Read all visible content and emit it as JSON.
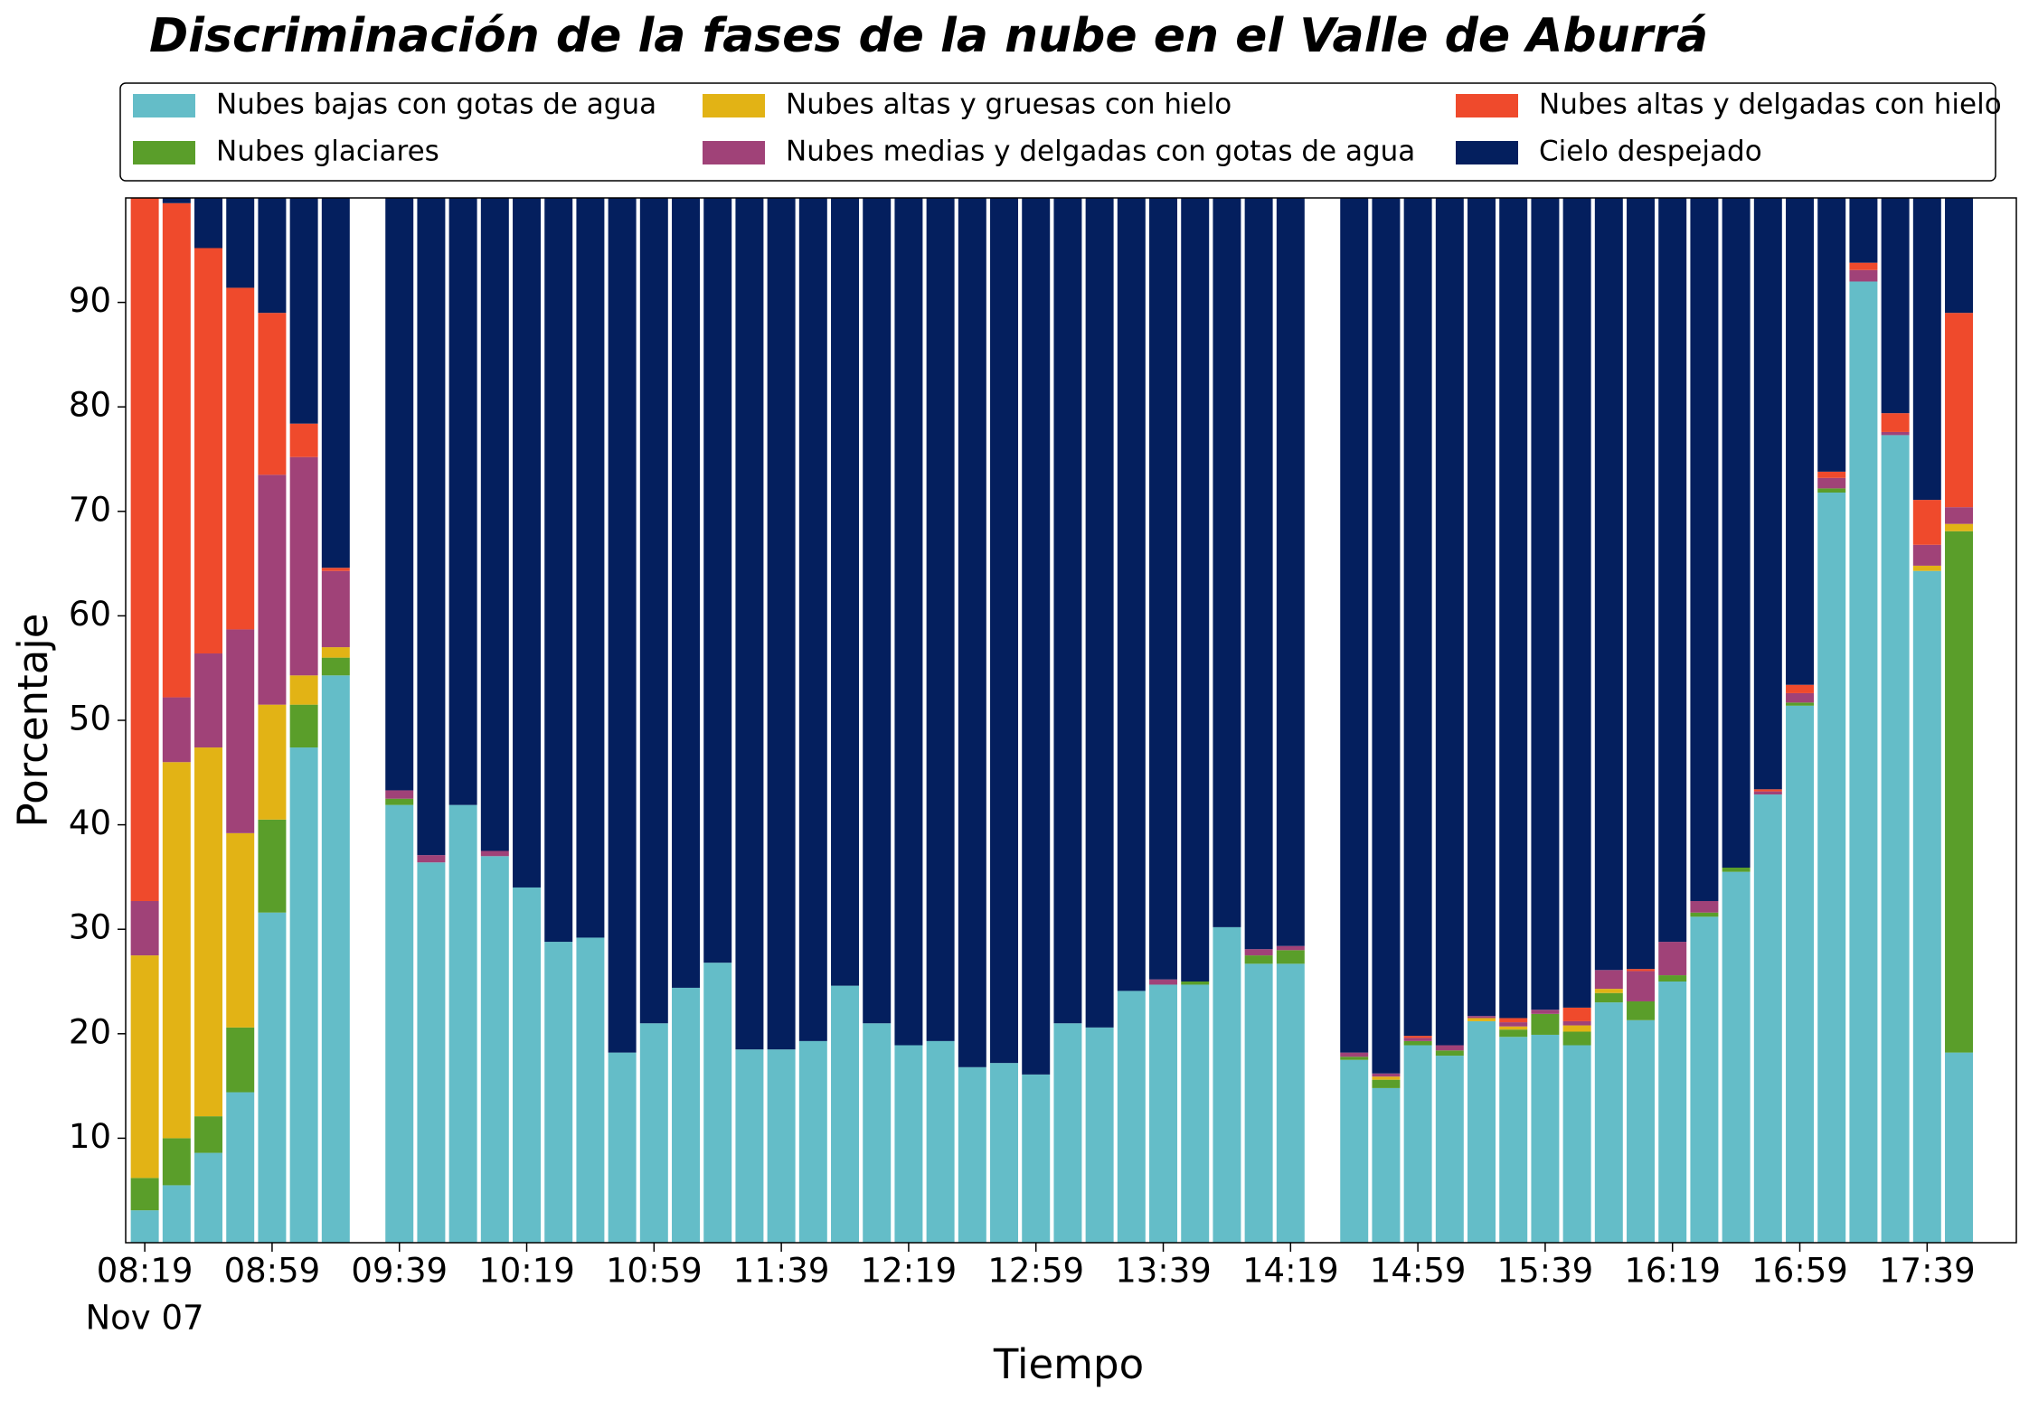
{
  "chart_data": {
    "type": "stacked_bar",
    "title": "Discriminación de la fases de la nube en el Valle de Aburrá",
    "xlabel": "Tiempo",
    "ylabel": "Porcentaje",
    "x_sublabel": "Nov 07",
    "categories": [
      "08:19",
      "08:29",
      "08:39",
      "08:49",
      "08:59",
      "09:09",
      "09:19",
      "09:29",
      "09:39",
      "09:49",
      "09:59",
      "10:09",
      "10:19",
      "10:29",
      "10:39",
      "10:49",
      "10:59",
      "11:09",
      "11:19",
      "11:29",
      "11:39",
      "11:49",
      "11:59",
      "12:09",
      "12:19",
      "12:29",
      "12:39",
      "12:49",
      "12:59",
      "13:09",
      "13:19",
      "13:29",
      "13:39",
      "13:49",
      "13:59",
      "14:09",
      "14:19",
      "14:29",
      "14:39",
      "14:49",
      "14:59",
      "15:09",
      "15:19",
      "15:29",
      "15:39",
      "15:49",
      "15:59",
      "16:09",
      "16:19",
      "16:29",
      "16:39",
      "16:49",
      "16:59",
      "17:09",
      "17:19",
      "17:29",
      "17:39",
      "17:49"
    ],
    "xticks": [
      "08:19",
      "08:59",
      "09:39",
      "10:19",
      "10:59",
      "11:39",
      "12:19",
      "12:59",
      "13:39",
      "14:19",
      "14:59",
      "15:39",
      "16:19",
      "16:59",
      "17:39"
    ],
    "ylim": [
      0,
      100
    ],
    "yticks": [
      10,
      20,
      30,
      40,
      50,
      60,
      70,
      80,
      90
    ],
    "legend": "top",
    "series": [
      {
        "name": "Nubes bajas con gotas de agua",
        "color": "#64bdc8",
        "values": [
          3.1,
          5.5,
          8.6,
          14.4,
          31.6,
          47.4,
          54.3,
          null,
          41.9,
          36.4,
          41.9,
          37,
          34,
          28.8,
          29.2,
          18.2,
          21,
          24.4,
          26.8,
          18.5,
          18.5,
          19.3,
          24.6,
          21,
          18.9,
          19.3,
          16.8,
          17.2,
          16.1,
          21,
          20.6,
          24.1,
          24.7,
          24.7,
          30.2,
          26.7,
          26.7,
          null,
          17.5,
          14.8,
          18.9,
          17.9,
          21.2,
          19.7,
          19.9,
          18.9,
          23,
          21.3,
          25,
          31.2,
          35.5,
          42.9,
          51.4,
          71.8,
          92,
          77.3,
          64.3,
          18.2
        ]
      },
      {
        "name": "Nubes glaciares",
        "color": "#5a9e2a",
        "values": [
          3.1,
          4.5,
          3.5,
          6.2,
          8.9,
          4.1,
          1.7,
          null,
          0.6,
          0,
          0,
          0,
          0,
          0,
          0,
          0,
          0,
          0,
          0,
          0,
          0,
          0,
          0,
          0,
          0,
          0,
          0,
          0,
          0,
          0,
          0,
          0,
          0,
          0.3,
          0,
          0.8,
          1.3,
          null,
          0.3,
          0.8,
          0.4,
          0.5,
          0,
          0.7,
          2,
          1.3,
          0.9,
          1.8,
          0.6,
          0.4,
          0.4,
          0,
          0.3,
          0.4,
          0,
          0,
          0,
          49.9
        ]
      },
      {
        "name": "Nubes altas y gruesas con hielo",
        "color": "#e2b315",
        "values": [
          21.3,
          36,
          35.3,
          18.6,
          11,
          2.8,
          1,
          null,
          0,
          0,
          0,
          0,
          0,
          0,
          0,
          0,
          0,
          0,
          0,
          0,
          0,
          0,
          0,
          0,
          0,
          0,
          0,
          0,
          0,
          0,
          0,
          0,
          0,
          0,
          0,
          0,
          0,
          null,
          0,
          0.3,
          0,
          0,
          0.3,
          0.3,
          0,
          0.6,
          0.4,
          0,
          0,
          0,
          0,
          0,
          0,
          0,
          0,
          0,
          0.5,
          0.7
        ]
      },
      {
        "name": "Nubes medias y delgadas con gotas de agua",
        "color": "#a04278",
        "values": [
          5.2,
          6.2,
          9,
          19.5,
          22,
          20.9,
          7.3,
          null,
          0.8,
          0.7,
          0,
          0.5,
          0,
          0,
          0,
          0,
          0,
          0,
          0,
          0,
          0,
          0,
          0,
          0,
          0,
          0,
          0,
          0,
          0,
          0,
          0,
          0,
          0.5,
          0,
          0,
          0.6,
          0.4,
          null,
          0.4,
          0.3,
          0.3,
          0.5,
          0.2,
          0.4,
          0.4,
          0.4,
          1.8,
          2.9,
          3.2,
          1.1,
          0,
          0.3,
          0.9,
          1,
          1.1,
          0.3,
          2,
          1.6
        ]
      },
      {
        "name": "Nubes altas y delgadas con hielo",
        "color": "#ef4a2c",
        "values": [
          67.3,
          47.3,
          38.8,
          32.7,
          15.5,
          3.2,
          0.3,
          null,
          0,
          0,
          0,
          0,
          0,
          0,
          0,
          0,
          0,
          0,
          0,
          0,
          0,
          0,
          0,
          0,
          0,
          0,
          0,
          0,
          0,
          0,
          0,
          0,
          0,
          0,
          0,
          0,
          0,
          null,
          0,
          0,
          0.2,
          0,
          0,
          0.4,
          0,
          1.3,
          0,
          0.2,
          0,
          0,
          0,
          0.2,
          0.8,
          0.6,
          0.7,
          1.8,
          4.3,
          18.6
        ]
      },
      {
        "name": "Cielo despejado",
        "color": "#041f5e",
        "values": [
          0,
          0.5,
          4.8,
          8.6,
          11,
          21.6,
          35.4,
          null,
          56.7,
          62.9,
          58.1,
          62.5,
          66,
          71.2,
          70.8,
          81.8,
          79,
          75.6,
          73.2,
          81.5,
          81.5,
          80.7,
          75.4,
          79,
          81.1,
          80.7,
          83.2,
          82.8,
          83.9,
          79,
          79.4,
          75.9,
          74.8,
          75,
          69.8,
          71.9,
          71.6,
          null,
          81.8,
          83.8,
          80.2,
          81.1,
          78.3,
          78.5,
          77.7,
          77.5,
          73.9,
          73.8,
          71.2,
          67.3,
          64.1,
          56.6,
          46.6,
          26.2,
          6.2,
          20.6,
          28.9,
          11
        ]
      }
    ]
  }
}
